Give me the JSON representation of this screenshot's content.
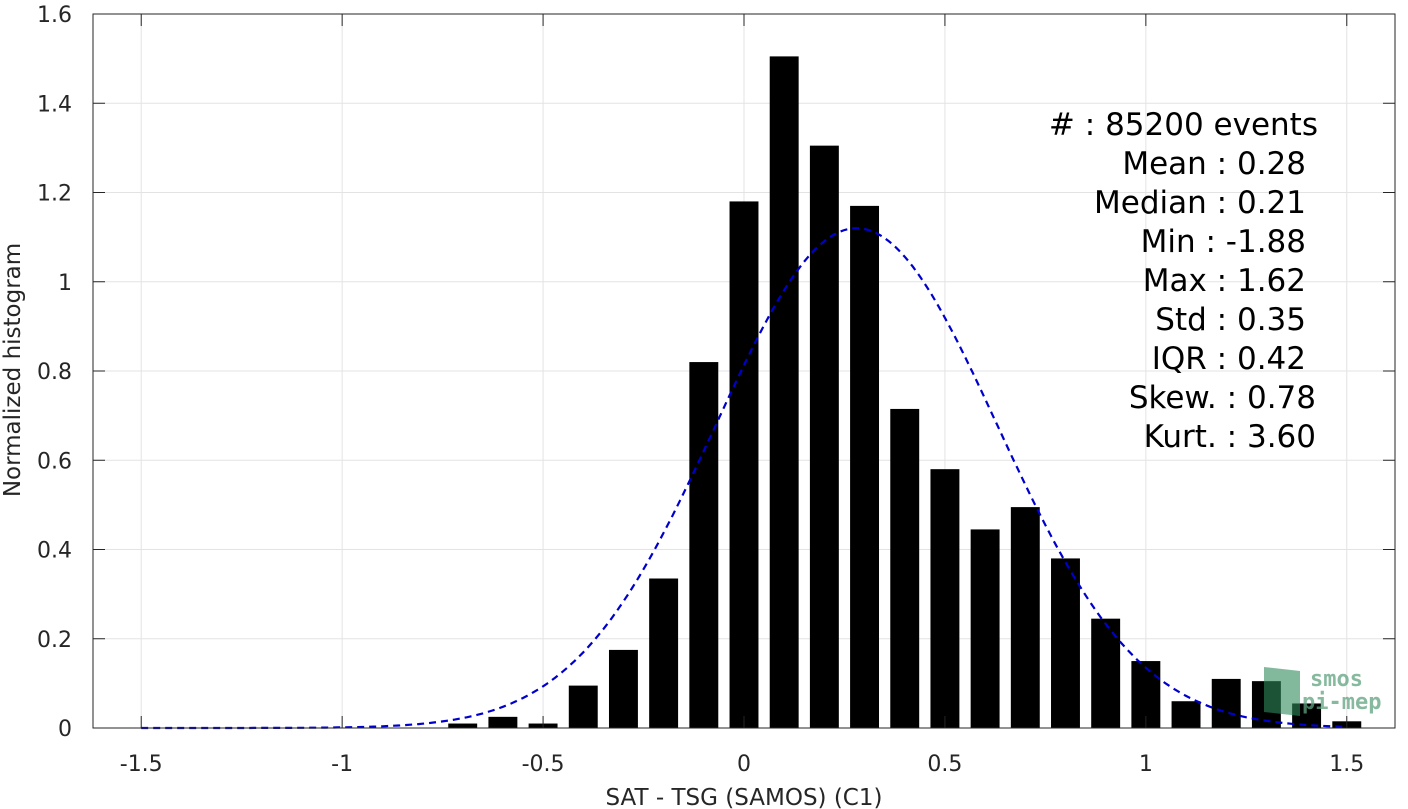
{
  "chart_data": {
    "type": "bar",
    "xlabel": "SAT - TSG (SAMOS) (C1)",
    "ylabel": "Normalized histogram",
    "xlim": [
      -1.62,
      1.62
    ],
    "ylim": [
      0,
      1.6
    ],
    "xticks": [
      -1.5,
      -1,
      -0.5,
      0,
      0.5,
      1,
      1.5
    ],
    "xtick_labels": [
      "-1.5",
      "-1",
      "-0.5",
      "0",
      "0.5",
      "1",
      "1.5"
    ],
    "yticks": [
      0,
      0.2,
      0.4,
      0.6,
      0.8,
      1,
      1.2,
      1.4,
      1.6
    ],
    "ytick_labels": [
      "0",
      "0.2",
      "0.4",
      "0.6",
      "0.8",
      "1",
      "1.2",
      "1.4",
      "1.6"
    ],
    "grid": true,
    "bar_color": "#000000",
    "fit_color": "#0000cc",
    "bins": [
      -0.7,
      -0.6,
      -0.5,
      -0.4,
      -0.3,
      -0.2,
      -0.1,
      0.0,
      0.1,
      0.2,
      0.3,
      0.4,
      0.5,
      0.6,
      0.7,
      0.8,
      0.9,
      1.0,
      1.1,
      1.2,
      1.3,
      1.4,
      1.5
    ],
    "values": [
      0.01,
      0.025,
      0.01,
      0.095,
      0.175,
      0.335,
      0.82,
      1.18,
      1.505,
      1.305,
      1.17,
      0.715,
      0.58,
      0.445,
      0.495,
      0.38,
      0.245,
      0.15,
      0.06,
      0.11,
      0.105,
      0.055,
      0.015
    ],
    "fit": {
      "style": "dashed",
      "mean": 0.28,
      "std": 0.35,
      "peak": 1.12
    },
    "stats": [
      {
        "label": "#",
        "sep": ":",
        "value": "85200 events"
      },
      {
        "label": "Mean",
        "sep": ":",
        "value": "0.28"
      },
      {
        "label": "Median",
        "sep": ":",
        "value": "0.21"
      },
      {
        "label": "Min",
        "sep": ":",
        "value": "-1.88"
      },
      {
        "label": "Max",
        "sep": ":",
        "value": "1.62"
      },
      {
        "label": "Std",
        "sep": ":",
        "value": "0.35"
      },
      {
        "label": "IQR",
        "sep": ":",
        "value": "0.42"
      },
      {
        "label": "Skew.",
        "sep": ":",
        "value": "0.78"
      },
      {
        "label": "Kurt.",
        "sep": ":",
        "value": "3.60"
      }
    ]
  },
  "watermark": {
    "line1": "smos",
    "line2": "pi-mep",
    "color": "#5fa27f"
  }
}
